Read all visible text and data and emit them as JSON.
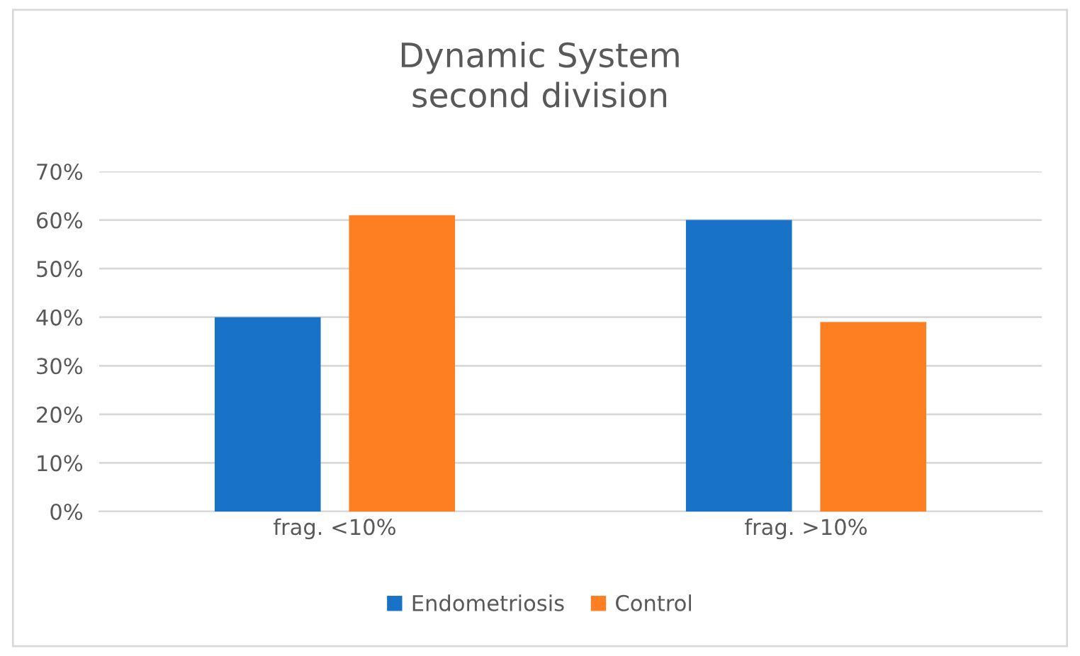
{
  "chart_data": {
    "type": "bar",
    "title": "Dynamic System\nsecond division",
    "categories": [
      "frag. <10%",
      "frag. >10%"
    ],
    "series": [
      {
        "name": "Endometriosis",
        "color": "#1772c8",
        "values": [
          40,
          60
        ]
      },
      {
        "name": "Control",
        "color": "#fe7f22",
        "values": [
          61,
          39
        ]
      }
    ],
    "ylim": [
      0,
      70
    ],
    "yticks": [
      {
        "value": 0,
        "label": "0%"
      },
      {
        "value": 10,
        "label": "10%"
      },
      {
        "value": 20,
        "label": "20%"
      },
      {
        "value": 30,
        "label": "30%"
      },
      {
        "value": 40,
        "label": "40%"
      },
      {
        "value": 50,
        "label": "50%"
      },
      {
        "value": 60,
        "label": "60%"
      },
      {
        "value": 70,
        "label": "70%"
      }
    ],
    "grid": "y",
    "legend": "bottom"
  }
}
